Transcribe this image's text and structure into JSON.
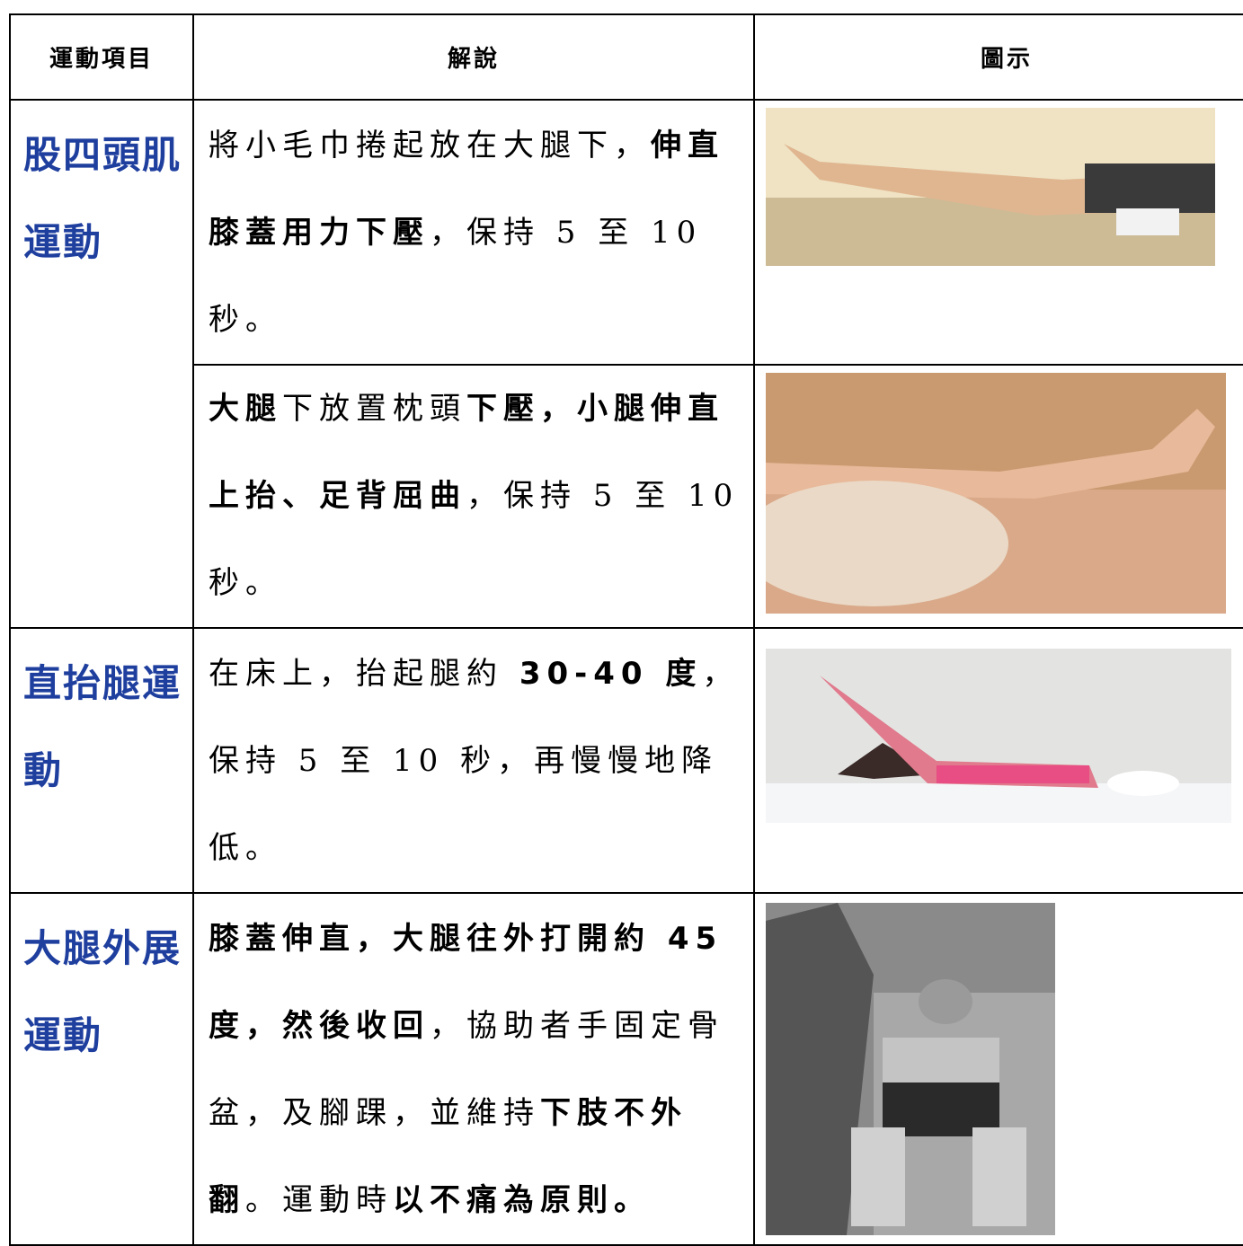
{
  "table": {
    "header": [
      "運動項目",
      "解說",
      "圖示"
    ],
    "rows": [
      {
        "name": "股四頭肌運動",
        "steps": [
          [
            "將小毛巾捲起放在大腿下，",
            "伸直膝蓋用力下壓",
            "，保持 5 至 10 秒。"
          ],
          [
            "大腿",
            "下放置枕頭",
            "下壓，小腿伸直上抬、足背屈曲",
            "，保持 5 至 10 秒。"
          ]
        ]
      },
      {
        "name": "直抬腿運動",
        "steps": [
          [
            "在床上，抬起腿約 ",
            "30-40 度",
            "，保持 5 至 10 秒，再慢慢地降低。"
          ]
        ]
      },
      {
        "name": "大腿外展運動",
        "steps": [
          [
            "膝蓋伸直，大腿往外打開約 45 度，然後收回",
            "，協助者手固定骨盆，及腳踝，並維持",
            "下肢不外翻",
            "。運動時",
            "以不痛為原則。"
          ]
        ]
      }
    ]
  }
}
